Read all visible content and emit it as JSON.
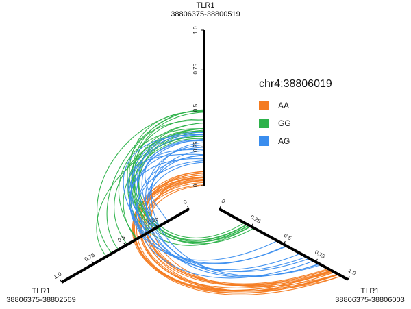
{
  "chart_data": {
    "type": "hive_plot",
    "axes": [
      {
        "id": "top",
        "gene": "TLR1",
        "range": "38806375-38800519",
        "ticks": [
          "0",
          "0.25",
          "0.5",
          "0.75",
          "1.0"
        ]
      },
      {
        "id": "left",
        "gene": "TLR1",
        "range": "38806375-38802569",
        "ticks": [
          "0",
          "0.25",
          "0.5",
          "0.75",
          "1.0"
        ]
      },
      {
        "id": "right",
        "gene": "TLR1",
        "range": "38806375-38806003",
        "ticks": [
          "0",
          "0.25",
          "0.5",
          "0.75",
          "1.0"
        ]
      }
    ],
    "legend": {
      "title": "chr4:38806019",
      "items": [
        {
          "label": "AA",
          "color": "#F47B20"
        },
        {
          "label": "GG",
          "color": "#2DB24A"
        },
        {
          "label": "AG",
          "color": "#3A8DEE"
        }
      ]
    },
    "series": [
      {
        "name": "AA",
        "color": "#F47B20",
        "axes": [
          "top",
          "right"
        ],
        "count": 17,
        "from": [
          0.0,
          0.1
        ],
        "to": [
          0.84,
          0.96
        ]
      },
      {
        "name": "GG",
        "color": "#2DB24A",
        "axes": [
          "top",
          "right"
        ],
        "count": 8,
        "from": [
          0.3,
          0.5
        ],
        "to": [
          0.18,
          0.28
        ]
      },
      {
        "name": "GG",
        "color": "#2DB24A",
        "axes": [
          "top",
          "left"
        ],
        "count": 10,
        "from": [
          0.3,
          0.5
        ],
        "to": [
          0.25,
          0.65
        ]
      },
      {
        "name": "AG",
        "color": "#3A8DEE",
        "axes": [
          "top",
          "right"
        ],
        "count": 10,
        "from": [
          0.15,
          0.35
        ],
        "to": [
          0.45,
          0.82
        ]
      },
      {
        "name": "AG",
        "color": "#3A8DEE",
        "axes": [
          "top",
          "left"
        ],
        "count": 8,
        "from": [
          0.15,
          0.35
        ],
        "to": [
          0.1,
          0.38
        ]
      }
    ]
  }
}
